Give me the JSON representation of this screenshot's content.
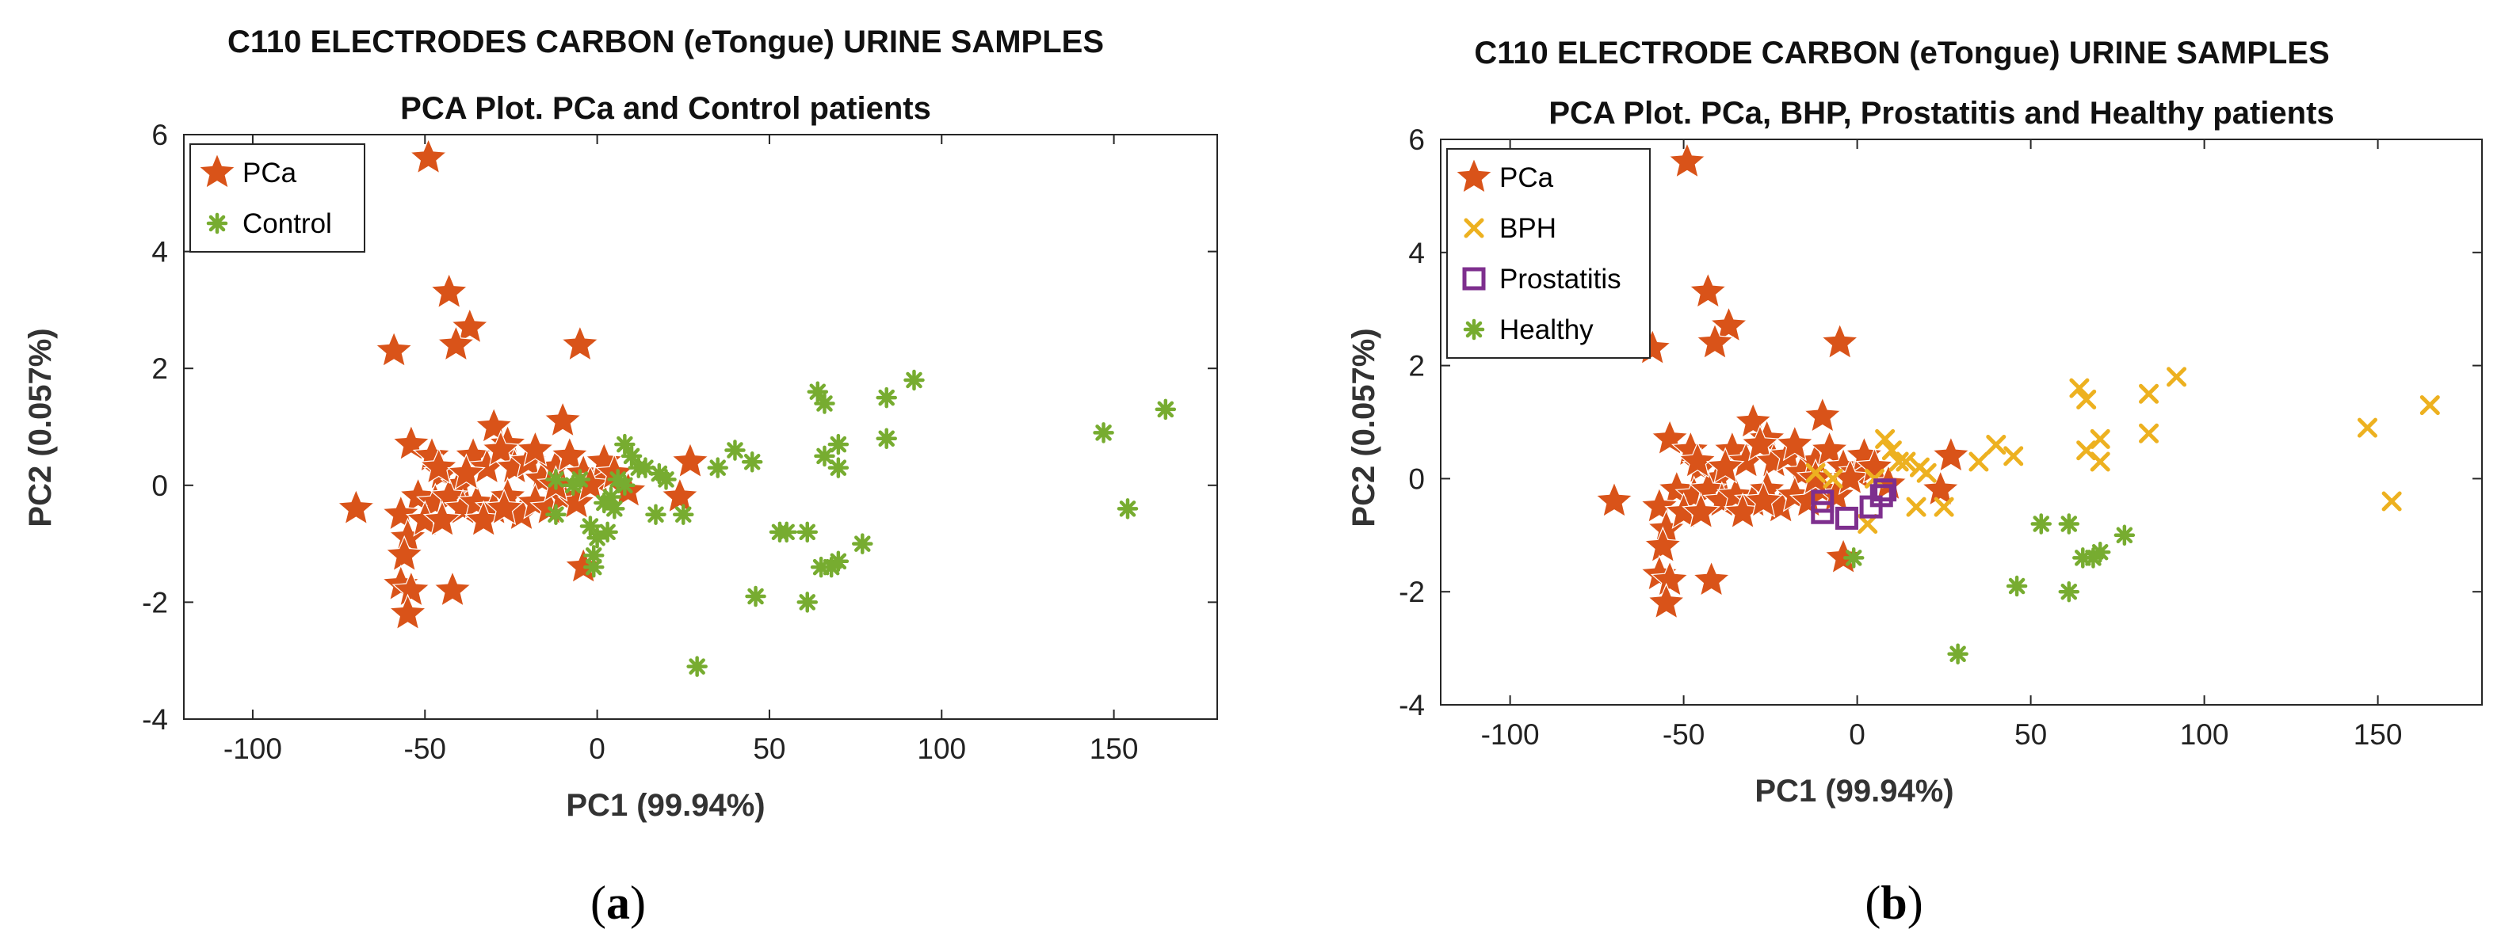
{
  "colors": {
    "pca": "#D95319",
    "control": "#77AC30",
    "bph": "#EDB120",
    "prostatitis": "#7E2F8E",
    "axis": "#262626"
  },
  "chart_data": [
    {
      "type": "scatter",
      "panel": "a",
      "caption": "a",
      "title_lines": [
        "C110 ELECTRODES CARBON (eTongue) URINE SAMPLES",
        "PCA Plot. PCa and Control patients"
      ],
      "xlabel": "PC1 (99.94%)",
      "ylabel": "PC2 (0.057%)",
      "xlim": [
        -120,
        180
      ],
      "ylim": [
        -4,
        6
      ],
      "xticks": [
        -100,
        -50,
        0,
        50,
        100,
        150
      ],
      "yticks": [
        -4,
        -2,
        0,
        2,
        4,
        6
      ],
      "legend_position": "top-left",
      "series": [
        {
          "name": "PCa",
          "marker": "star",
          "color_key": "pca",
          "points": [
            [
              -49,
              5.6
            ],
            [
              -43,
              3.3
            ],
            [
              -37,
              2.7
            ],
            [
              -41,
              2.4
            ],
            [
              -59,
              2.3
            ],
            [
              -5,
              2.4
            ],
            [
              -30,
              1.0
            ],
            [
              -10,
              1.1
            ],
            [
              -26,
              0.7
            ],
            [
              -54,
              0.7
            ],
            [
              -48,
              0.5
            ],
            [
              -45,
              0.2
            ],
            [
              -40,
              0.0
            ],
            [
              -36,
              0.5
            ],
            [
              -32,
              0.3
            ],
            [
              -28,
              0.6
            ],
            [
              -24,
              0.3
            ],
            [
              -20,
              0.4
            ],
            [
              -16,
              0.1
            ],
            [
              -12,
              0.3
            ],
            [
              -8,
              0.5
            ],
            [
              -4,
              0.2
            ],
            [
              0,
              0.1
            ],
            [
              2,
              0.4
            ],
            [
              -52,
              -0.2
            ],
            [
              -47,
              -0.3
            ],
            [
              -43,
              -0.2
            ],
            [
              -39,
              -0.4
            ],
            [
              -35,
              -0.3
            ],
            [
              -30,
              -0.4
            ],
            [
              -26,
              -0.2
            ],
            [
              -22,
              -0.5
            ],
            [
              -18,
              -0.3
            ],
            [
              -14,
              -0.4
            ],
            [
              -10,
              -0.2
            ],
            [
              -6,
              -0.3
            ],
            [
              -2,
              0.0
            ],
            [
              5,
              0.2
            ],
            [
              9,
              -0.1
            ],
            [
              -70,
              -0.4
            ],
            [
              -57,
              -0.5
            ],
            [
              -55,
              -0.9
            ],
            [
              -56,
              -1.2
            ],
            [
              -57,
              -1.7
            ],
            [
              -54,
              -1.8
            ],
            [
              -55,
              -2.2
            ],
            [
              -42,
              -1.8
            ],
            [
              -4,
              -1.4
            ],
            [
              27,
              0.4
            ],
            [
              24,
              -0.2
            ],
            [
              -50,
              -0.6
            ],
            [
              -33,
              -0.6
            ],
            [
              -27,
              -0.4
            ],
            [
              -46,
              0.3
            ],
            [
              -38,
              0.2
            ],
            [
              -18,
              0.6
            ],
            [
              -12,
              0.0
            ],
            [
              -45,
              -0.6
            ]
          ]
        },
        {
          "name": "Control",
          "marker": "asterisk",
          "color_key": "control",
          "points": [
            [
              165,
              1.3
            ],
            [
              147,
              0.9
            ],
            [
              154,
              -0.4
            ],
            [
              92,
              1.8
            ],
            [
              84,
              1.5
            ],
            [
              84,
              0.8
            ],
            [
              64,
              1.6
            ],
            [
              66,
              1.4
            ],
            [
              70,
              0.7
            ],
            [
              70,
              0.3
            ],
            [
              66,
              0.5
            ],
            [
              40,
              0.6
            ],
            [
              45,
              0.4
            ],
            [
              35,
              0.3
            ],
            [
              53,
              -0.8
            ],
            [
              55,
              -0.8
            ],
            [
              61,
              -0.8
            ],
            [
              77,
              -1.0
            ],
            [
              70,
              -1.3
            ],
            [
              68,
              -1.4
            ],
            [
              65,
              -1.4
            ],
            [
              61,
              -2.0
            ],
            [
              46,
              -1.9
            ],
            [
              29,
              -3.1
            ],
            [
              8,
              0.7
            ],
            [
              10,
              0.5
            ],
            [
              12,
              0.3
            ],
            [
              6,
              0.1
            ],
            [
              4,
              -0.2
            ],
            [
              2,
              -0.3
            ],
            [
              5,
              -0.4
            ],
            [
              8,
              0.0
            ],
            [
              14,
              0.3
            ],
            [
              18,
              0.2
            ],
            [
              20,
              0.1
            ],
            [
              -2,
              -0.7
            ],
            [
              0,
              -0.9
            ],
            [
              3,
              -0.8
            ],
            [
              -1,
              -1.2
            ],
            [
              -1,
              -1.4
            ],
            [
              -12,
              -0.5
            ],
            [
              -12,
              0.1
            ],
            [
              17,
              -0.5
            ],
            [
              25,
              -0.5
            ],
            [
              -5,
              0.1
            ],
            [
              -7,
              0.0
            ]
          ]
        }
      ]
    },
    {
      "type": "scatter",
      "panel": "b",
      "caption": "b",
      "title_lines": [
        "C110 ELECTRODE CARBON (eTongue) URINE SAMPLES",
        "PCA Plot. PCa, BHP, Prostatitis and Healthy patients"
      ],
      "xlabel": "PC1 (99.94%)",
      "ylabel": "PC2 (0.057%)",
      "xlim": [
        -120,
        180
      ],
      "ylim": [
        -4,
        6
      ],
      "xticks": [
        -100,
        -50,
        0,
        50,
        100,
        150
      ],
      "yticks": [
        -4,
        -2,
        0,
        2,
        4,
        6
      ],
      "legend_position": "top-left",
      "series": [
        {
          "name": "PCa",
          "marker": "star",
          "color_key": "pca",
          "points": [
            [
              -49,
              5.6
            ],
            [
              -43,
              3.3
            ],
            [
              -37,
              2.7
            ],
            [
              -41,
              2.4
            ],
            [
              -59,
              2.3
            ],
            [
              -5,
              2.4
            ],
            [
              -30,
              1.0
            ],
            [
              -10,
              1.1
            ],
            [
              -26,
              0.7
            ],
            [
              -54,
              0.7
            ],
            [
              -48,
              0.5
            ],
            [
              -45,
              0.2
            ],
            [
              -40,
              0.0
            ],
            [
              -36,
              0.5
            ],
            [
              -32,
              0.3
            ],
            [
              -28,
              0.6
            ],
            [
              -24,
              0.3
            ],
            [
              -20,
              0.4
            ],
            [
              -16,
              0.1
            ],
            [
              -12,
              0.3
            ],
            [
              -8,
              0.5
            ],
            [
              -4,
              0.2
            ],
            [
              0,
              0.1
            ],
            [
              2,
              0.4
            ],
            [
              -52,
              -0.2
            ],
            [
              -47,
              -0.3
            ],
            [
              -43,
              -0.2
            ],
            [
              -39,
              -0.4
            ],
            [
              -35,
              -0.3
            ],
            [
              -30,
              -0.4
            ],
            [
              -26,
              -0.2
            ],
            [
              -22,
              -0.5
            ],
            [
              -18,
              -0.3
            ],
            [
              -14,
              -0.4
            ],
            [
              -10,
              -0.2
            ],
            [
              -6,
              -0.3
            ],
            [
              -2,
              0.0
            ],
            [
              5,
              0.2
            ],
            [
              9,
              -0.1
            ],
            [
              -70,
              -0.4
            ],
            [
              -57,
              -0.5
            ],
            [
              -55,
              -0.9
            ],
            [
              -56,
              -1.2
            ],
            [
              -57,
              -1.7
            ],
            [
              -54,
              -1.8
            ],
            [
              -55,
              -2.2
            ],
            [
              -42,
              -1.8
            ],
            [
              -4,
              -1.4
            ],
            [
              27,
              0.4
            ],
            [
              24,
              -0.2
            ],
            [
              -50,
              -0.6
            ],
            [
              -33,
              -0.6
            ],
            [
              -27,
              -0.4
            ],
            [
              -46,
              0.3
            ],
            [
              -38,
              0.2
            ],
            [
              -18,
              0.6
            ],
            [
              -12,
              0.0
            ],
            [
              -45,
              -0.6
            ]
          ]
        },
        {
          "name": "BPH",
          "marker": "x",
          "color_key": "bph",
          "points": [
            [
              165,
              1.3
            ],
            [
              147,
              0.9
            ],
            [
              154,
              -0.4
            ],
            [
              92,
              1.8
            ],
            [
              84,
              1.5
            ],
            [
              84,
              0.8
            ],
            [
              64,
              1.6
            ],
            [
              66,
              1.4
            ],
            [
              70,
              0.7
            ],
            [
              70,
              0.3
            ],
            [
              66,
              0.5
            ],
            [
              40,
              0.6
            ],
            [
              45,
              0.4
            ],
            [
              35,
              0.3
            ],
            [
              8,
              0.7
            ],
            [
              10,
              0.5
            ],
            [
              12,
              0.3
            ],
            [
              14,
              0.3
            ],
            [
              18,
              0.2
            ],
            [
              20,
              0.1
            ],
            [
              25,
              -0.5
            ],
            [
              17,
              -0.5
            ],
            [
              5,
              0.0
            ],
            [
              3,
              -0.8
            ],
            [
              -12,
              0.1
            ],
            [
              -7,
              0.0
            ]
          ]
        },
        {
          "name": "Prostatitis",
          "marker": "square",
          "color_key": "prostatitis",
          "points": [
            [
              -10,
              -0.6
            ],
            [
              -10,
              -0.4
            ],
            [
              -3,
              -0.7
            ],
            [
              4,
              -0.5
            ],
            [
              7,
              -0.3
            ],
            [
              8,
              -0.2
            ]
          ]
        },
        {
          "name": "Healthy",
          "marker": "asterisk",
          "color_key": "control",
          "points": [
            [
              53,
              -0.8
            ],
            [
              61,
              -0.8
            ],
            [
              77,
              -1.0
            ],
            [
              70,
              -1.3
            ],
            [
              68,
              -1.4
            ],
            [
              65,
              -1.4
            ],
            [
              61,
              -2.0
            ],
            [
              46,
              -1.9
            ],
            [
              29,
              -3.1
            ],
            [
              -1,
              -1.4
            ]
          ]
        }
      ]
    }
  ]
}
